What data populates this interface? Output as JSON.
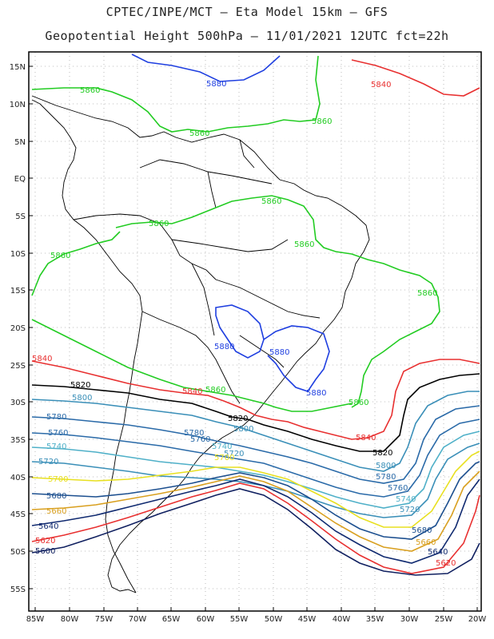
{
  "header": {
    "line1": "CPTEC/INPE/MCT –  Eta Model 15km – GFS",
    "line2": "Geopotential Height 500hPa – 11/01/2021 12UTC fct=22h"
  },
  "axes": {
    "lat_labels": [
      "15N",
      "10N",
      "5N",
      "EQ",
      "5S",
      "10S",
      "15S",
      "20S",
      "25S",
      "30S",
      "35S",
      "40S",
      "45S",
      "50S",
      "55S"
    ],
    "lon_labels": [
      "85W",
      "80W",
      "75W",
      "70W",
      "65W",
      "60W",
      "55W",
      "50W",
      "45W",
      "40W",
      "35W",
      "30W",
      "25W",
      "20W"
    ]
  },
  "contours": [
    {
      "level": "5880",
      "color": "#1f3fe0"
    },
    {
      "level": "5860",
      "color": "#22cc22"
    },
    {
      "level": "5840",
      "color": "#e83030"
    },
    {
      "level": "5820",
      "color": "#000000"
    },
    {
      "level": "5800",
      "color": "#3a8fb8"
    },
    {
      "level": "5780",
      "color": "#2a6aa8"
    },
    {
      "level": "5760",
      "color": "#2a6aa8"
    },
    {
      "level": "5740",
      "color": "#4fb0c8"
    },
    {
      "level": "5720",
      "color": "#3a8fb8"
    },
    {
      "level": "5700",
      "color": "#e8e020"
    },
    {
      "level": "5680",
      "color": "#1c4f8f"
    },
    {
      "level": "5660",
      "color": "#d9a020"
    },
    {
      "level": "5640",
      "color": "#102a70"
    },
    {
      "level": "5620",
      "color": "#e83030"
    },
    {
      "level": "5600",
      "color": "#102060"
    }
  ],
  "labels": [
    {
      "text": "5880",
      "color": "#1f3fe0"
    },
    {
      "text": "5880",
      "color": "#1f3fe0"
    },
    {
      "text": "5880",
      "color": "#1f3fe0"
    },
    {
      "text": "5880",
      "color": "#1f3fe0"
    },
    {
      "text": "5860",
      "color": "#22cc22"
    },
    {
      "text": "5860",
      "color": "#22cc22"
    },
    {
      "text": "5860",
      "color": "#22cc22"
    },
    {
      "text": "5860",
      "color": "#22cc22"
    },
    {
      "text": "5860",
      "color": "#22cc22"
    },
    {
      "text": "5860",
      "color": "#22cc22"
    },
    {
      "text": "5860",
      "color": "#22cc22"
    },
    {
      "text": "5860",
      "color": "#22cc22"
    },
    {
      "text": "5860",
      "color": "#22cc22"
    },
    {
      "text": "5860",
      "color": "#22cc22"
    },
    {
      "text": "5840",
      "color": "#e83030"
    },
    {
      "text": "5840",
      "color": "#e83030"
    },
    {
      "text": "5840",
      "color": "#e83030"
    },
    {
      "text": "5840",
      "color": "#e83030"
    },
    {
      "text": "5820",
      "color": "#000000"
    },
    {
      "text": "5820",
      "color": "#000000"
    },
    {
      "text": "5820",
      "color": "#000000"
    },
    {
      "text": "5800",
      "color": "#3a8fb8"
    },
    {
      "text": "5800",
      "color": "#3a8fb8"
    },
    {
      "text": "5800",
      "color": "#3a8fb8"
    },
    {
      "text": "5780",
      "color": "#2a6aa8"
    },
    {
      "text": "5780",
      "color": "#2a6aa8"
    },
    {
      "text": "5780",
      "color": "#2a6aa8"
    },
    {
      "text": "5760",
      "color": "#2a6aa8"
    },
    {
      "text": "5760",
      "color": "#2a6aa8"
    },
    {
      "text": "5760",
      "color": "#2a6aa8"
    },
    {
      "text": "5740",
      "color": "#4fb0c8"
    },
    {
      "text": "5740",
      "color": "#4fb0c8"
    },
    {
      "text": "5740",
      "color": "#4fb0c8"
    },
    {
      "text": "5720",
      "color": "#3a8fb8"
    },
    {
      "text": "5720",
      "color": "#3a8fb8"
    },
    {
      "text": "5720",
      "color": "#3a8fb8"
    },
    {
      "text": "5700",
      "color": "#e8e020"
    },
    {
      "text": "5700",
      "color": "#e8e020"
    },
    {
      "text": "5680",
      "color": "#1c4f8f"
    },
    {
      "text": "5680",
      "color": "#1c4f8f"
    },
    {
      "text": "5660",
      "color": "#d9a020"
    },
    {
      "text": "5660",
      "color": "#d9a020"
    },
    {
      "text": "5640",
      "color": "#102a70"
    },
    {
      "text": "5640",
      "color": "#102a70"
    },
    {
      "text": "5620",
      "color": "#e83030"
    },
    {
      "text": "5620",
      "color": "#e83030"
    },
    {
      "text": "5600",
      "color": "#102060"
    }
  ]
}
